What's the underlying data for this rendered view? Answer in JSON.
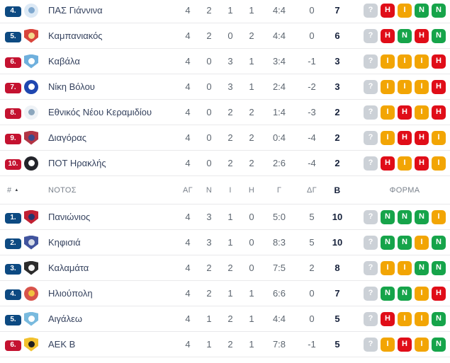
{
  "palette": {
    "pos_blue": "#0d4a82",
    "pos_red": "#c41230",
    "form_win": "#16a44a",
    "form_draw": "#f2a504",
    "form_loss": "#e00d18",
    "form_unknown": "#ccd1d7"
  },
  "form_letters": {
    "win": "Ν",
    "draw": "Ι",
    "loss": "Η",
    "unknown": "?"
  },
  "header": {
    "pos": "#",
    "group": "ΝΟΤΟΣ",
    "played": "ΑΓ",
    "wins": "Ν",
    "draws": "Ι",
    "losses": "Η",
    "goals": "Γ",
    "goal_diff": "ΔΓ",
    "points": "Β",
    "form": "ΦΟΡΜΑ",
    "sort_icon": "▲"
  },
  "north_rows": [
    {
      "rank": "4.",
      "badge": "blue",
      "team": "ΠΑΣ Γιάννινα",
      "logo": {
        "shape": "circle",
        "c1": "#dce9f5",
        "c2": "#7fa8cf"
      },
      "played": "4",
      "wins": "2",
      "draws": "1",
      "losses": "1",
      "goals": "4:4",
      "goal_diff": "0",
      "points": "7",
      "form": [
        "unknown",
        "loss",
        "draw",
        "win",
        "win"
      ]
    },
    {
      "rank": "5.",
      "badge": "blue",
      "team": "Καμπανιακός",
      "logo": {
        "shape": "shield",
        "c1": "#d9453c",
        "c2": "#f3d98a"
      },
      "played": "4",
      "wins": "2",
      "draws": "0",
      "losses": "2",
      "goals": "4:4",
      "goal_diff": "0",
      "points": "6",
      "form": [
        "unknown",
        "loss",
        "win",
        "loss",
        "win"
      ]
    },
    {
      "rank": "6.",
      "badge": "red",
      "team": "Καβάλα",
      "logo": {
        "shape": "shield",
        "c1": "#6fb0dd",
        "c2": "#ffffff"
      },
      "played": "4",
      "wins": "0",
      "draws": "3",
      "losses": "1",
      "goals": "3:4",
      "goal_diff": "-1",
      "points": "3",
      "form": [
        "unknown",
        "draw",
        "draw",
        "draw",
        "loss"
      ]
    },
    {
      "rank": "7.",
      "badge": "red",
      "team": "Νίκη Βόλου",
      "logo": {
        "shape": "circle",
        "c1": "#1f47b0",
        "c2": "#ffffff"
      },
      "played": "4",
      "wins": "0",
      "draws": "3",
      "losses": "1",
      "goals": "2:4",
      "goal_diff": "-2",
      "points": "3",
      "form": [
        "unknown",
        "draw",
        "draw",
        "draw",
        "loss"
      ]
    },
    {
      "rank": "8.",
      "badge": "red",
      "team": "Εθνικός Νέου Κεραμιδίου",
      "logo": {
        "shape": "circle",
        "c1": "#eef2f6",
        "c2": "#8ba6bd"
      },
      "played": "4",
      "wins": "0",
      "draws": "2",
      "losses": "2",
      "goals": "1:4",
      "goal_diff": "-3",
      "points": "2",
      "form": [
        "unknown",
        "draw",
        "loss",
        "draw",
        "loss"
      ]
    },
    {
      "rank": "9.",
      "badge": "red",
      "team": "Διαγόρας",
      "logo": {
        "shape": "shield",
        "c1": "#b23545",
        "c2": "#3b4a8c"
      },
      "played": "4",
      "wins": "0",
      "draws": "2",
      "losses": "2",
      "goals": "0:4",
      "goal_diff": "-4",
      "points": "2",
      "form": [
        "unknown",
        "draw",
        "loss",
        "loss",
        "draw"
      ]
    },
    {
      "rank": "10.",
      "badge": "red",
      "team": "ΠΟΤ Ηρακλής",
      "logo": {
        "shape": "circle",
        "c1": "#23242a",
        "c2": "#ffffff"
      },
      "played": "4",
      "wins": "0",
      "draws": "2",
      "losses": "2",
      "goals": "2:6",
      "goal_diff": "-4",
      "points": "2",
      "form": [
        "unknown",
        "loss",
        "draw",
        "loss",
        "draw"
      ]
    }
  ],
  "south_rows": [
    {
      "rank": "1.",
      "badge": "blue",
      "team": "Πανιώνιος",
      "logo": {
        "shape": "shield",
        "c1": "#c22033",
        "c2": "#23356e"
      },
      "played": "4",
      "wins": "3",
      "draws": "1",
      "losses": "0",
      "goals": "5:0",
      "goal_diff": "5",
      "points": "10",
      "form": [
        "unknown",
        "win",
        "win",
        "win",
        "draw"
      ]
    },
    {
      "rank": "2.",
      "badge": "blue",
      "team": "Κηφισιά",
      "logo": {
        "shape": "shield",
        "c1": "#41549e",
        "c2": "#d7dde8"
      },
      "played": "4",
      "wins": "3",
      "draws": "1",
      "losses": "0",
      "goals": "8:3",
      "goal_diff": "5",
      "points": "10",
      "form": [
        "unknown",
        "win",
        "win",
        "draw",
        "win"
      ]
    },
    {
      "rank": "3.",
      "badge": "blue",
      "team": "Καλαμάτα",
      "logo": {
        "shape": "shield",
        "c1": "#2b2b2b",
        "c2": "#f3f3f3"
      },
      "played": "4",
      "wins": "2",
      "draws": "2",
      "losses": "0",
      "goals": "7:5",
      "goal_diff": "2",
      "points": "8",
      "form": [
        "unknown",
        "draw",
        "draw",
        "win",
        "win"
      ]
    },
    {
      "rank": "4.",
      "badge": "blue",
      "team": "Ηλιούπολη",
      "logo": {
        "shape": "circle",
        "c1": "#d8534a",
        "c2": "#f0c23e"
      },
      "played": "4",
      "wins": "2",
      "draws": "1",
      "losses": "1",
      "goals": "6:6",
      "goal_diff": "0",
      "points": "7",
      "form": [
        "unknown",
        "win",
        "win",
        "draw",
        "loss"
      ]
    },
    {
      "rank": "5.",
      "badge": "blue",
      "team": "Αιγάλεω",
      "logo": {
        "shape": "shield",
        "c1": "#79bade",
        "c2": "#ffffff"
      },
      "played": "4",
      "wins": "1",
      "draws": "2",
      "losses": "1",
      "goals": "4:4",
      "goal_diff": "0",
      "points": "5",
      "form": [
        "unknown",
        "loss",
        "draw",
        "draw",
        "win"
      ]
    },
    {
      "rank": "6.",
      "badge": "red",
      "team": "ΑΕΚ Β",
      "logo": {
        "shape": "shield",
        "c1": "#f2c12e",
        "c2": "#1f1f1f"
      },
      "played": "4",
      "wins": "1",
      "draws": "2",
      "losses": "1",
      "goals": "7:8",
      "goal_diff": "-1",
      "points": "5",
      "form": [
        "unknown",
        "draw",
        "loss",
        "draw",
        "win"
      ]
    }
  ]
}
